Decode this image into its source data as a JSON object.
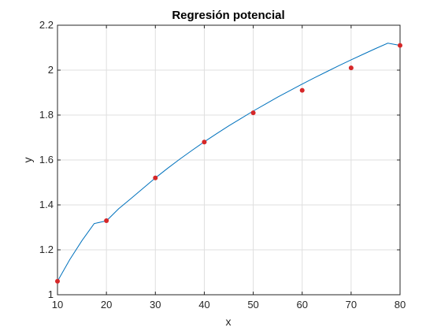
{
  "chart_data": {
    "type": "line",
    "title": "Regresión potencial",
    "xlabel": "x",
    "ylabel": "y",
    "xlim": [
      10,
      80
    ],
    "ylim": [
      1,
      2.2
    ],
    "grid": true,
    "x_ticks": [
      10,
      20,
      30,
      40,
      50,
      60,
      70,
      80
    ],
    "x_tick_labels": [
      "10",
      "20",
      "30",
      "40",
      "50",
      "60",
      "70",
      "80"
    ],
    "y_ticks": [
      1,
      1.2,
      1.4,
      1.6,
      1.8,
      2,
      2.2
    ],
    "y_tick_labels": [
      "1",
      "1.2",
      "1.4",
      "1.6",
      "1.8",
      "2",
      "2.2"
    ],
    "series": [
      {
        "kind": "line",
        "color": "#0072BD",
        "x": [
          10,
          12.5,
          15,
          17.5,
          20,
          22.5,
          25,
          27.5,
          30,
          32.5,
          35,
          37.5,
          40,
          42.5,
          45,
          47.5,
          50,
          52.5,
          55,
          57.5,
          60,
          62.5,
          65,
          67.5,
          70,
          72.5,
          75,
          77.5,
          80
        ],
        "y": [
          1.06,
          1.156,
          1.241,
          1.317,
          1.329,
          1.383,
          1.428,
          1.474,
          1.52,
          1.563,
          1.604,
          1.643,
          1.681,
          1.717,
          1.752,
          1.785,
          1.818,
          1.849,
          1.88,
          1.909,
          1.938,
          1.966,
          1.993,
          2.02,
          2.046,
          2.071,
          2.096,
          2.12,
          2.11
        ]
      },
      {
        "kind": "scatter",
        "color": "#D62728",
        "x": [
          10,
          20,
          30,
          40,
          50,
          60,
          70,
          80
        ],
        "y": [
          1.06,
          1.33,
          1.52,
          1.68,
          1.81,
          1.91,
          2.01,
          2.11
        ]
      }
    ]
  }
}
